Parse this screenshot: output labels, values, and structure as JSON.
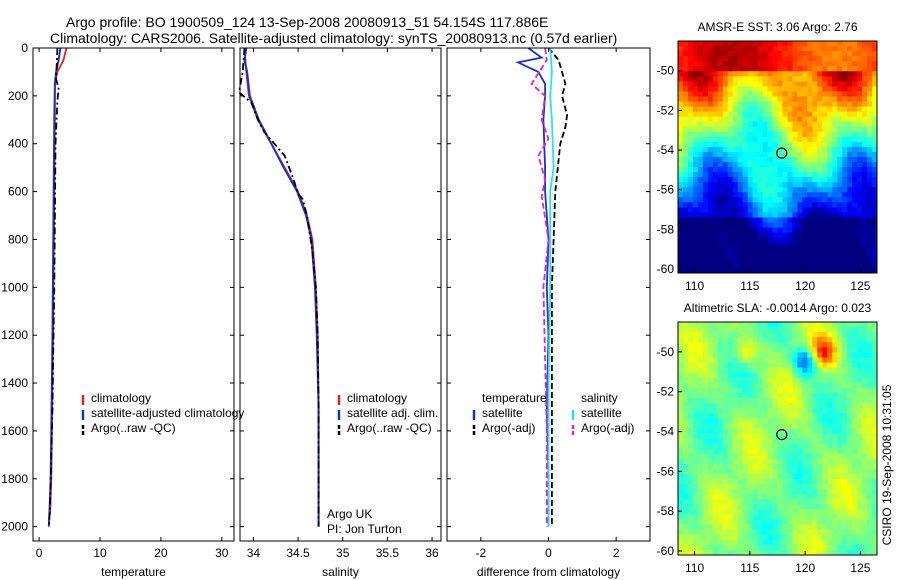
{
  "header": {
    "line1": "Argo profile: BO 1900509_124 13-Sep-2008 20080913_51 54.154S 117.886E",
    "line2": "Climatology: CARS2006. Satellite-adjusted climatology: synTS_20080913.nc (0.57d earlier)"
  },
  "side_stamp": "CSIRO 19-Sep-2008 10:31:05",
  "colors": {
    "climatology": "#dd2222",
    "satellite": "#1a33c8",
    "argo": "#000000",
    "salinity_sat": "#22e6ee",
    "salinity_argo": "#e020d8"
  },
  "chart_data": [
    {
      "type": "line",
      "id": "temperature",
      "xlabel": "temperature",
      "ylabel": "",
      "xlim": [
        -1,
        32
      ],
      "ylim": [
        2060,
        0
      ],
      "xticks": [
        0,
        10,
        20,
        30
      ],
      "yticks": [
        0,
        200,
        400,
        600,
        800,
        1000,
        1200,
        1400,
        1600,
        1800,
        2000
      ],
      "series": [
        {
          "name": "climatology",
          "style": "solid",
          "color": "#dd2222",
          "x": [
            4.5,
            4.0,
            3.0,
            2.6,
            2.6,
            2.5,
            2.4,
            2.3,
            2.2,
            2.1,
            2.0,
            1.8
          ],
          "y": [
            0,
            50,
            100,
            150,
            300,
            600,
            900,
            1200,
            1400,
            1600,
            1800,
            1950
          ]
        },
        {
          "name": "satellite-adjusted climatology",
          "style": "solid",
          "color": "#1a33c8",
          "x": [
            3.5,
            3.2,
            2.8,
            2.6,
            2.5,
            2.4,
            2.3,
            2.2,
            2.1,
            2.0,
            1.9,
            1.7,
            1.6
          ],
          "y": [
            0,
            50,
            100,
            150,
            300,
            600,
            900,
            1200,
            1400,
            1600,
            1800,
            1950,
            2000
          ]
        },
        {
          "name": "Argo(..raw -QC)",
          "style": "dashdot",
          "color": "#000000",
          "x": [
            3.0,
            2.9,
            2.8,
            3.2,
            3.0,
            2.7,
            2.6,
            2.5,
            2.3,
            2.2,
            2.0,
            1.8,
            1.6
          ],
          "y": [
            0,
            60,
            130,
            170,
            220,
            400,
            700,
            1000,
            1300,
            1500,
            1700,
            1900,
            2000
          ]
        }
      ],
      "legend": {
        "placement": "center-right",
        "entries": [
          "climatology",
          "satellite-adjusted climatology",
          "Argo(..raw -QC)"
        ]
      }
    },
    {
      "type": "line",
      "id": "salinity",
      "xlabel": "salinity",
      "ylabel": "",
      "xlim": [
        33.85,
        36.1
      ],
      "ylim": [
        2060,
        0
      ],
      "xticks": [
        34,
        34.5,
        35,
        35.5,
        36
      ],
      "series": [
        {
          "name": "climatology",
          "style": "solid",
          "color": "#dd2222",
          "x": [
            33.9,
            33.92,
            33.95,
            34.05,
            34.2,
            34.35,
            34.5,
            34.6,
            34.66,
            34.7,
            34.72,
            34.73,
            34.73
          ],
          "y": [
            0,
            100,
            200,
            300,
            400,
            500,
            600,
            700,
            800,
            1000,
            1200,
            1500,
            2000
          ]
        },
        {
          "name": "satellite adj. clim.",
          "style": "solid",
          "color": "#1a33c8",
          "x": [
            33.92,
            33.9,
            33.93,
            33.96,
            34.06,
            34.2,
            34.34,
            34.49,
            34.59,
            34.65,
            34.69,
            34.71,
            34.73,
            34.73
          ],
          "y": [
            0,
            50,
            100,
            200,
            300,
            400,
            500,
            600,
            700,
            800,
            1000,
            1200,
            1500,
            2000
          ]
        },
        {
          "name": "Argo(..raw -QC)",
          "style": "dashdot",
          "color": "#000000",
          "x": [
            33.9,
            33.88,
            33.84,
            33.98,
            34.05,
            34.12,
            34.35,
            34.45,
            34.5,
            34.55,
            34.6,
            34.66,
            34.7,
            34.72,
            34.73,
            34.73
          ],
          "y": [
            0,
            100,
            185,
            230,
            300,
            350,
            450,
            550,
            610,
            630,
            700,
            850,
            1000,
            1200,
            1500,
            2000
          ]
        }
      ],
      "legend": {
        "placement": "center-right",
        "entries": [
          "climatology",
          "satellite adj. clim.",
          "Argo(..raw -QC)"
        ]
      },
      "annotations": [
        "Argo UK",
        "PI: Jon Turton"
      ]
    },
    {
      "type": "line",
      "id": "difference",
      "xlabel": "difference from climatology",
      "ylabel": "",
      "xlim": [
        -3,
        3
      ],
      "ylim": [
        2060,
        0
      ],
      "xticks": [
        -2,
        0,
        2
      ],
      "series": [
        {
          "name": "temperature satellite",
          "style": "solid",
          "color": "#1a33c8",
          "x": [
            -0.6,
            -0.2,
            -0.9,
            -0.3,
            -0.1,
            -0.1,
            -0.15,
            -0.1,
            -0.1,
            0.0,
            -0.05,
            0.0,
            -0.05,
            0.0,
            0.0
          ],
          "y": [
            0,
            40,
            60,
            100,
            150,
            200,
            300,
            500,
            600,
            800,
            1000,
            1200,
            1500,
            1800,
            2000
          ]
        },
        {
          "name": "temperature Argo(-adj)",
          "style": "dashed",
          "color": "#000000",
          "x": [
            0.0,
            0.3,
            0.5,
            0.4,
            0.55,
            0.5,
            0.35,
            0.2,
            0.15,
            0.1,
            0.1,
            0.1,
            0.1
          ],
          "y": [
            0,
            50,
            150,
            200,
            280,
            330,
            400,
            600,
            800,
            1000,
            1400,
            1800,
            2000
          ]
        },
        {
          "name": "salinity satellite",
          "style": "solid",
          "color": "#22e6ee",
          "x": [
            0.05,
            0.1,
            0.05,
            0.1,
            0.15,
            0.05,
            0.05,
            0.05,
            0.0,
            0.0,
            0.0
          ],
          "y": [
            0,
            100,
            200,
            300,
            500,
            600,
            800,
            1000,
            1400,
            1800,
            2000
          ]
        },
        {
          "name": "salinity Argo(-adj)",
          "style": "dashed",
          "color": "#e020d8",
          "x": [
            -0.1,
            -0.05,
            -0.5,
            -0.1,
            -0.2,
            0.0,
            -0.3,
            -0.1,
            -0.2,
            0.0,
            -0.15,
            -0.1,
            -0.05,
            -0.05
          ],
          "y": [
            0,
            50,
            150,
            200,
            300,
            380,
            450,
            550,
            620,
            800,
            1000,
            1300,
            1600,
            2000
          ]
        }
      ],
      "legend": {
        "placement": "center",
        "entries": [
          {
            "group": "temperature",
            "label": "satellite",
            "color": "#1a33c8"
          },
          {
            "group": "temperature",
            "label": "Argo(-adj)",
            "color": "#000000"
          },
          {
            "group": "salinity",
            "label": "satellite",
            "color": "#22e6ee"
          },
          {
            "group": "salinity",
            "label": "Argo(-adj)",
            "color": "#e020d8"
          }
        ],
        "group_titles": [
          "temperature",
          "salinity"
        ]
      }
    },
    {
      "type": "heatmap",
      "id": "amsr_sst",
      "title": "AMSR-E SST: 3.06 Argo: 2.76",
      "xticks": [
        110,
        115,
        120,
        125
      ],
      "yticks": [
        -50,
        -52,
        -54,
        -56,
        -58,
        -60
      ],
      "xlim": [
        108.5,
        126.5
      ],
      "ylim": [
        -60.2,
        -48.5
      ],
      "marker": {
        "lon": 117.886,
        "lat": -54.154
      },
      "colormap": "jet"
    },
    {
      "type": "heatmap",
      "id": "altimetric_sla",
      "title": "Altimetric SLA: -0.0014 Argo: 0.023",
      "xticks": [
        110,
        115,
        120,
        125
      ],
      "yticks": [
        -50,
        -52,
        -54,
        -56,
        -58,
        -60
      ],
      "xlim": [
        108.5,
        126.5
      ],
      "ylim": [
        -60.2,
        -48.5
      ],
      "marker": {
        "lon": 117.886,
        "lat": -54.154
      },
      "colormap": "jet"
    }
  ]
}
